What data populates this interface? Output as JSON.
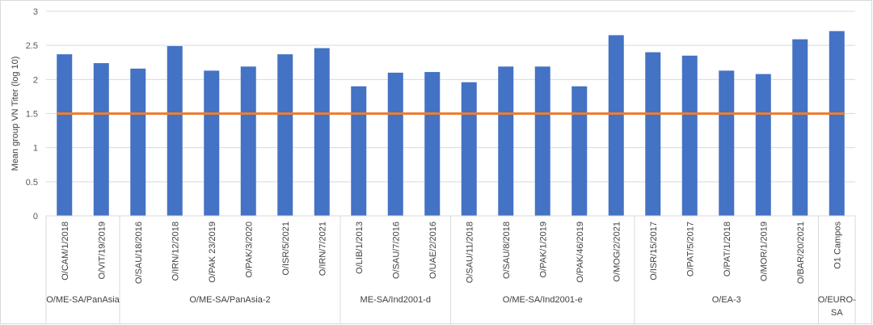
{
  "chart_data": {
    "type": "bar",
    "ylabel": "Mean group VN Titer (log 10)",
    "ylim": [
      0,
      3
    ],
    "yticks": [
      "0",
      "0.5",
      "1",
      "1.5",
      "2",
      "2.5",
      "3"
    ],
    "grid": true,
    "categories": [
      "O/CAM/1/2018",
      "O/VIT/19/2019",
      "O/SAU/18/2016",
      "O/IRN/12/2018",
      "O/PAK 23/2019",
      "O/PAK/3/2020",
      "O/ISR/5/2021",
      "O/IRN/7/2021",
      "O/LIB/1/2013",
      "O/SAU/7/2016",
      "O/UAE/2/2016",
      "O/SAU/11/2018",
      "O/SAU/8/2018",
      "O/PAK/1/2019",
      "O/PAK/46/2019",
      "O/MOG/2/2021",
      "O/ISR/15/2017",
      "O/PAT/5/2017",
      "O/PAT/1/2018",
      "O/MOR/1/2019",
      "O/BAR/20/2021",
      "O1 Campos"
    ],
    "values": [
      2.37,
      2.24,
      2.16,
      2.49,
      2.13,
      2.19,
      2.37,
      2.46,
      1.9,
      2.1,
      2.11,
      1.96,
      2.19,
      2.19,
      1.9,
      2.65,
      2.4,
      2.35,
      2.13,
      2.08,
      2.59,
      2.71
    ],
    "groups": [
      {
        "label": "O/ME-SA/PanAsia",
        "count": 2
      },
      {
        "label": "O/ME-SA/PanAsia-2",
        "count": 6
      },
      {
        "label": "ME-SA/Ind2001-d",
        "count": 3
      },
      {
        "label": "O/ME-SA/Ind2001-e",
        "count": 5
      },
      {
        "label": "O/EA-3",
        "count": 5
      },
      {
        "label": "O/EURO-SA",
        "count": 1
      }
    ],
    "threshold": {
      "value": 1.5,
      "color": "#ed7d31"
    },
    "colors": {
      "bar": "#4472c4",
      "grid": "#d9d9d9",
      "threshold": "#ed7d31"
    }
  }
}
